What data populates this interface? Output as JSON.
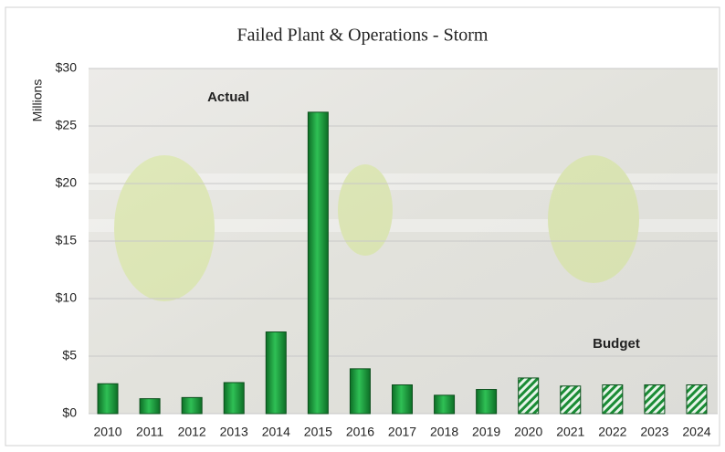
{
  "chart_data": {
    "type": "bar",
    "title": "Failed Plant & Operations - Storm",
    "y_label": "Millions",
    "categories": [
      "2010",
      "2011",
      "2012",
      "2013",
      "2014",
      "2015",
      "2016",
      "2017",
      "2018",
      "2019",
      "2020",
      "2021",
      "2022",
      "2023",
      "2024"
    ],
    "series": [
      {
        "name": "Actual",
        "color": "#1a9c3a",
        "style": "solid",
        "values": [
          2.6,
          1.3,
          1.4,
          2.7,
          7.1,
          26.2,
          3.9,
          2.5,
          1.6,
          2.1,
          null,
          null,
          null,
          null,
          null
        ]
      },
      {
        "name": "Budget",
        "color": "#1a9c3a",
        "style": "hatched",
        "values": [
          null,
          null,
          null,
          null,
          null,
          null,
          null,
          null,
          null,
          null,
          3.1,
          2.4,
          2.5,
          2.5,
          2.5
        ]
      }
    ],
    "ylim": [
      0,
      30
    ],
    "yticks": [
      {
        "value": 0,
        "label": "$0"
      },
      {
        "value": 5,
        "label": "$5"
      },
      {
        "value": 10,
        "label": "$10"
      },
      {
        "value": 15,
        "label": "$15"
      },
      {
        "value": 20,
        "label": "$20"
      },
      {
        "value": 25,
        "label": "$25"
      },
      {
        "value": 30,
        "label": "$30"
      }
    ],
    "grid": true
  }
}
